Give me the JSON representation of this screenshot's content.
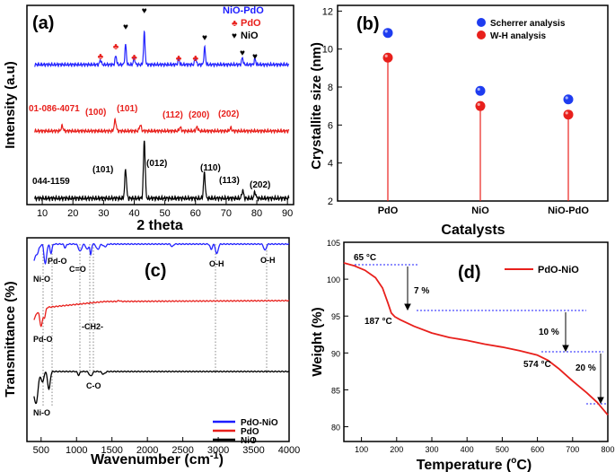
{
  "chart_data": [
    {
      "type": "line",
      "panel": "(a)",
      "xlabel": "2 theta",
      "ylabel": "Intensity (a.u)",
      "xlim": [
        5,
        92
      ],
      "xticks": [
        "10",
        "20",
        "30",
        "40",
        "50",
        "60",
        "70",
        "80",
        "90"
      ],
      "legend": [
        {
          "name": "NiO-PdO",
          "color": "#1c1cff"
        },
        {
          "name": "PdO",
          "color": "#e8201c",
          "marker": "♣"
        },
        {
          "name": "NiO",
          "color": "#000000",
          "marker": "♥"
        }
      ],
      "series": [
        {
          "name": "NiO-PdO",
          "color": "#2525ff",
          "peaks": [
            [
              29,
              0.25
            ],
            [
              34,
              0.45
            ],
            [
              37.2,
              1
            ],
            [
              40,
              0.35
            ],
            [
              43.3,
              1.6
            ],
            [
              54.5,
              0.3
            ],
            [
              60,
              0.35
            ],
            [
              63,
              0.85
            ],
            [
              75.3,
              0.35
            ],
            [
              79.4,
              0.3
            ]
          ]
        },
        {
          "name": "PdO",
          "color": "#e8201c",
          "peaks": [
            [
              16.5,
              0.25
            ],
            [
              33.8,
              0.55
            ],
            [
              42,
              0.3
            ],
            [
              55,
              0.18
            ],
            [
              60.5,
              0.2
            ],
            [
              71.5,
              0.15
            ]
          ]
        },
        {
          "name": "NiO",
          "color": "#000000",
          "peaks": [
            [
              37.2,
              1.15
            ],
            [
              43.3,
              2.3
            ],
            [
              62.9,
              1.0
            ],
            [
              75.4,
              0.32
            ],
            [
              79.4,
              0.25
            ]
          ]
        }
      ],
      "annotations": {
        "pdo_ref": "01-086-4071",
        "pdo_planes": [
          "(100)",
          "(101)",
          "(112)",
          "(200)",
          "(202)"
        ],
        "nio_ref": "044-1159",
        "nio_planes": [
          "(101)",
          "(012)",
          "(110)",
          "(113)",
          "(202)"
        ]
      }
    },
    {
      "type": "scatter",
      "panel": "(b)",
      "xlabel": "Catalysts",
      "ylabel": "Crystallite size (nm)",
      "categories": [
        "PdO",
        "NiO",
        "NiO-PdO"
      ],
      "ylim": [
        2,
        12.3
      ],
      "yticks": [
        "2",
        "4",
        "6",
        "8",
        "10",
        "12"
      ],
      "series": [
        {
          "name": "Scherrer analysis",
          "color": "#1e3cf0",
          "values": [
            10.85,
            7.8,
            7.35
          ]
        },
        {
          "name": "W-H analysis",
          "color": "#e8201c",
          "values": [
            9.55,
            7.0,
            6.55
          ]
        }
      ]
    },
    {
      "type": "line",
      "panel": "(c)",
      "xlabel": "Wavenumber (cm-1)",
      "xlabel_main": "Wavenumber (cm",
      "xlabel_sup": "-1",
      "xlabel_end": ")",
      "ylabel": "Transmittance (%)",
      "xlim": [
        300,
        4000
      ],
      "xticks": [
        "500",
        "1000",
        "1500",
        "2000",
        "2500",
        "3000",
        "3500",
        "4000"
      ],
      "legend": [
        {
          "name": "PdO-NiO",
          "color": "#1c1cff"
        },
        {
          "name": "PdO",
          "color": "#e8201c"
        },
        {
          "name": "NiO",
          "color": "#000000"
        }
      ],
      "annotations": [
        "Pd-O",
        "Ni-O",
        "C=O",
        "O-H",
        "O-H",
        "Pd-O",
        "-CH2-",
        "C-O",
        "Ni-O"
      ]
    },
    {
      "type": "line",
      "panel": "(d)",
      "xlabel": "Temperature (°C)",
      "xlabel_main": "Temperature (",
      "xlabel_end": "C)",
      "ylabel": "Weight (%)",
      "xlim": [
        50,
        800
      ],
      "ylim": [
        78,
        105
      ],
      "xticks": [
        "100",
        "200",
        "300",
        "400",
        "500",
        "600",
        "700",
        "800"
      ],
      "yticks": [
        "80",
        "85",
        "90",
        "95",
        "100",
        "105"
      ],
      "legend": [
        {
          "name": "PdO-NiO",
          "color": "#e8201c"
        }
      ],
      "series": [
        {
          "name": "PdO-NiO",
          "color": "#e8201c",
          "x": [
            50,
            80,
            110,
            140,
            160,
            175,
            185,
            195,
            210,
            250,
            300,
            350,
            400,
            450,
            500,
            550,
            600,
            630,
            660,
            700,
            740,
            770,
            800
          ],
          "y": [
            102.2,
            101.8,
            101.2,
            100.2,
            98.8,
            96.8,
            95.4,
            94.9,
            94.5,
            93.6,
            92.7,
            92.1,
            91.7,
            91.2,
            90.8,
            90.3,
            89.7,
            89.0,
            87.9,
            86.2,
            84.6,
            83.3,
            81.6
          ]
        }
      ],
      "annotations": {
        "t1": "65 °C",
        "t2": "187 °C",
        "t3": "574 °C",
        "l1": "7 %",
        "l2": "10 %",
        "l3": "20 %"
      }
    }
  ]
}
